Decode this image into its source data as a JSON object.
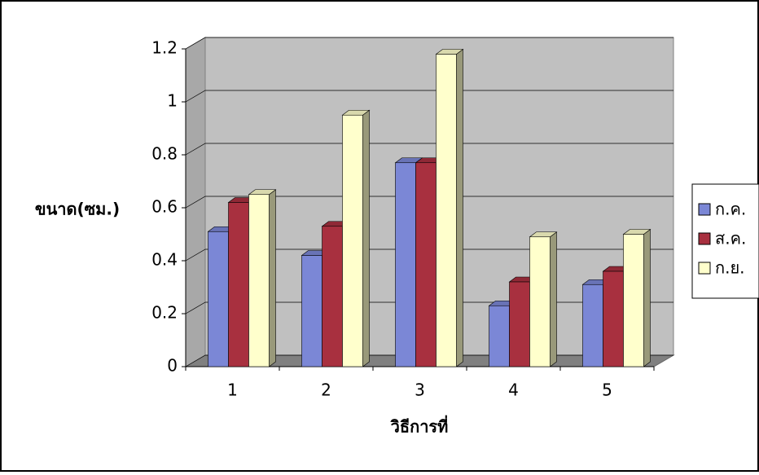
{
  "chart_data": {
    "type": "bar3d",
    "y_label": "ขนาด(ซม.)",
    "x_label": "วิธีการที่",
    "categories": [
      "1",
      "2",
      "3",
      "4",
      "5"
    ],
    "series": [
      {
        "name": "ก.ค.",
        "color": "#7b87d6",
        "values": [
          0.51,
          0.42,
          0.77,
          0.23,
          0.31
        ]
      },
      {
        "name": "ส.ค.",
        "color": "#a8303f",
        "values": [
          0.62,
          0.53,
          0.77,
          0.32,
          0.36
        ]
      },
      {
        "name": "ก.ย.",
        "color": "#ffffcc",
        "values": [
          0.65,
          0.95,
          1.18,
          0.49,
          0.5
        ]
      }
    ],
    "ylim": [
      0,
      1.2
    ],
    "yticks": [
      0,
      0.2,
      0.4,
      0.6,
      0.8,
      1,
      1.2
    ],
    "grid": true,
    "legend": "right"
  }
}
